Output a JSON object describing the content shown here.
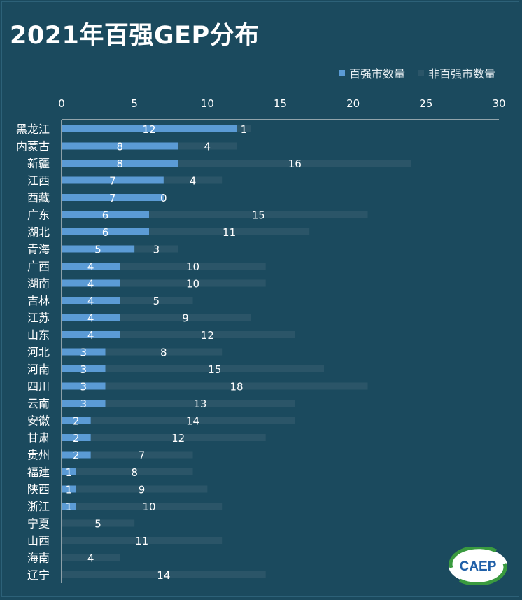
{
  "title": "2021年百强GEP分布",
  "legend": {
    "series1": "百强市数量",
    "series2": "非百强市数量"
  },
  "colors": {
    "background": "#1b4a5e",
    "series1": "#5b9bd5",
    "series2": "#2b5568",
    "text": "#ffffff",
    "axis": "#d9d9d9"
  },
  "logo_text": "CAEP",
  "chart_data": {
    "type": "bar",
    "orientation": "horizontal",
    "stacked": true,
    "title": "2021年百强GEP分布",
    "xlim": [
      0,
      30
    ],
    "xticks": [
      0,
      5,
      10,
      15,
      20,
      25,
      30
    ],
    "x_axis_position": "top",
    "legend_position": "top-right",
    "grid": false,
    "categories": [
      "黑龙江",
      "内蒙古",
      "新疆",
      "江西",
      "西藏",
      "广东",
      "湖北",
      "青海",
      "广西",
      "湖南",
      "吉林",
      "江苏",
      "山东",
      "河北",
      "河南",
      "四川",
      "云南",
      "安徽",
      "甘肃",
      "贵州",
      "福建",
      "陕西",
      "浙江",
      "宁夏",
      "山西",
      "海南",
      "辽宁"
    ],
    "series": [
      {
        "name": "百强市数量",
        "values": [
          12,
          8,
          8,
          7,
          7,
          6,
          6,
          5,
          4,
          4,
          4,
          4,
          4,
          3,
          3,
          3,
          3,
          2,
          2,
          2,
          1,
          1,
          1,
          0,
          0,
          0,
          0
        ]
      },
      {
        "name": "非百强市数量",
        "values": [
          1,
          4,
          16,
          4,
          0,
          15,
          11,
          3,
          10,
          10,
          5,
          9,
          12,
          8,
          15,
          18,
          13,
          14,
          12,
          7,
          8,
          9,
          10,
          5,
          11,
          4,
          14
        ]
      }
    ]
  }
}
